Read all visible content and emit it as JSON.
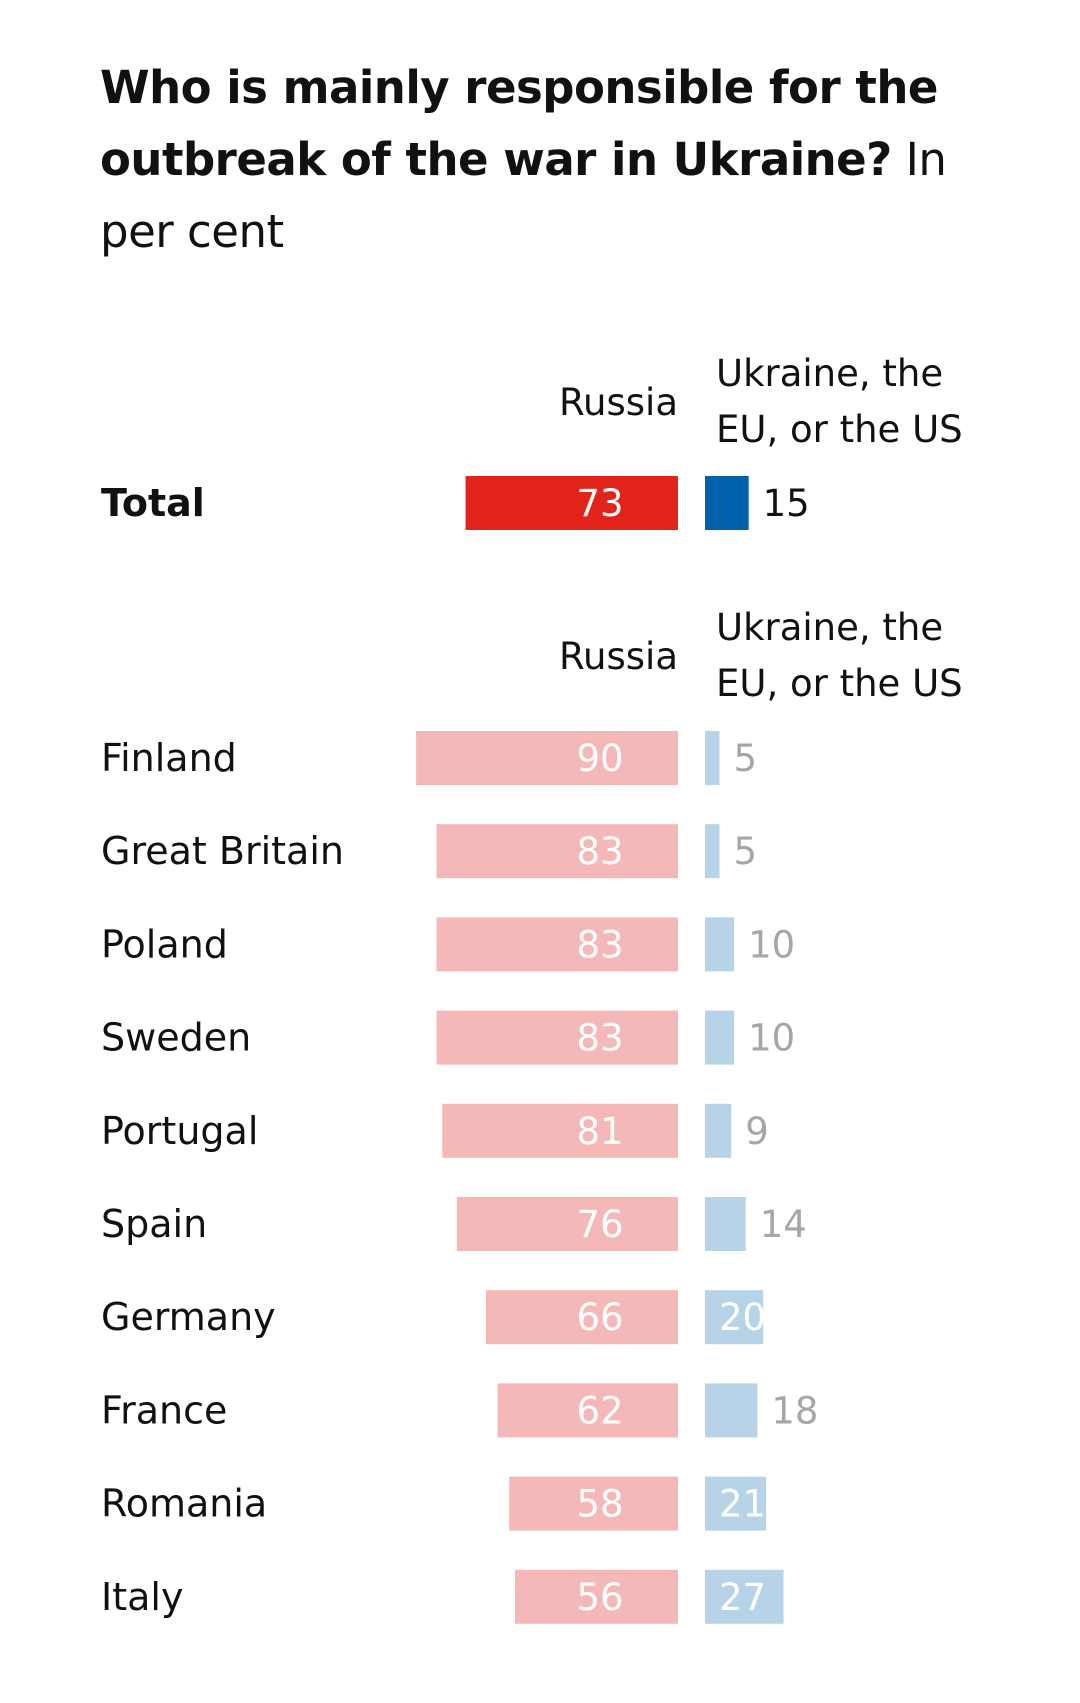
{
  "title": "Who is mainly responsible for the outbreak of the war in Ukraine?",
  "unit": "In per cent",
  "colors": {
    "russia_total": "#e2231a",
    "ukraine_total": "#0062ab",
    "russia_country": "#f4b8b8",
    "ukraine_country": "#b7d3e8",
    "text_dark": "#111111",
    "value_light": "#ffffff",
    "value_grey": "#a6a6a6"
  },
  "chart_data": [
    {
      "type": "bar",
      "series_labels": {
        "russia": "Russia",
        "ukraine": "Ukraine, the EU, or the US"
      },
      "header": {
        "russia": "Russia",
        "ukraine_line1": "Ukraine, the",
        "ukraine_line2": "EU, or the US"
      },
      "categories": [
        "Total"
      ],
      "series": [
        {
          "name": "Russia",
          "values": [
            73
          ]
        },
        {
          "name": "Ukraine, the EU, or the US",
          "values": [
            15
          ]
        }
      ]
    },
    {
      "type": "bar",
      "series_labels": {
        "russia": "Russia",
        "ukraine": "Ukraine, the EU, or the US"
      },
      "header": {
        "russia": "Russia",
        "ukraine_line1": "Ukraine, the",
        "ukraine_line2": "EU, or the US"
      },
      "categories": [
        "Finland",
        "Great Britain",
        "Poland",
        "Sweden",
        "Portugal",
        "Spain",
        "Germany",
        "France",
        "Romania",
        "Italy"
      ],
      "series": [
        {
          "name": "Russia",
          "values": [
            90,
            83,
            83,
            83,
            81,
            76,
            66,
            62,
            58,
            56
          ]
        },
        {
          "name": "Ukraine, the EU, or the US",
          "values": [
            5,
            5,
            10,
            10,
            9,
            14,
            20,
            18,
            21,
            27
          ]
        }
      ]
    }
  ]
}
